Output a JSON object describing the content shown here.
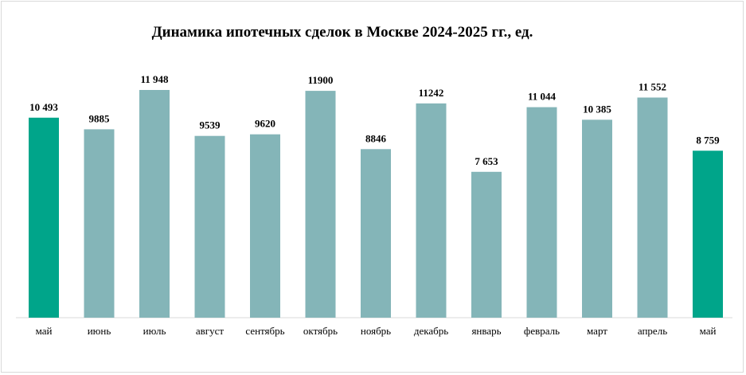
{
  "chart_data": {
    "type": "bar",
    "title": "Динамика ипотечных сделок в Москве 2024-2025 гг., ед.",
    "categories": [
      "май",
      "июнь",
      "июль",
      "август",
      "сентябрь",
      "октябрь",
      "ноябрь",
      "декабрь",
      "январь",
      "февраль",
      "март",
      "апрель",
      "май"
    ],
    "values": [
      10493,
      9885,
      11948,
      9539,
      9620,
      11900,
      8846,
      11242,
      7653,
      11044,
      10385,
      11552,
      8759
    ],
    "data_labels": [
      "10 493",
      "9885",
      "11 948",
      "9539",
      "9620",
      "11900",
      "8846",
      "11242",
      "7 653",
      "11 044",
      "10 385",
      "11 552",
      "8 759"
    ],
    "highlight_indices": [
      0,
      12
    ],
    "colors": {
      "bar": "#84b5b8",
      "highlight": "#00a58a",
      "axis": "#d9d9d9"
    },
    "ylim": [
      0,
      12000
    ],
    "grid": false,
    "legend": "none"
  }
}
